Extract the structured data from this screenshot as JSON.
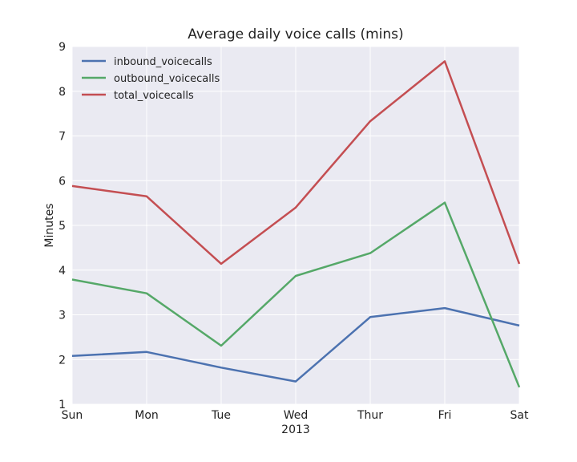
{
  "chart_data": {
    "type": "line",
    "title": "Average daily voice calls (mins)",
    "xlabel": "2013",
    "ylabel": "Minutes",
    "categories": [
      "Sun",
      "Mon",
      "Tue",
      "Wed",
      "Thur",
      "Fri",
      "Sat"
    ],
    "ylim": [
      1,
      9
    ],
    "yticks": [
      1,
      2,
      3,
      4,
      5,
      6,
      7,
      8,
      9
    ],
    "grid": true,
    "legend_position": "top-left",
    "background_color": "#EAEAF2",
    "series": [
      {
        "name": "inbound_voicecalls",
        "color": "#4C72B0",
        "values": [
          2.08,
          2.17,
          1.82,
          1.51,
          2.95,
          3.15,
          2.76
        ]
      },
      {
        "name": "outbound_voicecalls",
        "color": "#55A868",
        "values": [
          3.79,
          3.48,
          2.31,
          3.87,
          4.38,
          5.51,
          1.38
        ]
      },
      {
        "name": "total_voicecalls",
        "color": "#C44E52",
        "values": [
          5.88,
          5.65,
          4.14,
          5.4,
          7.33,
          8.67,
          4.14
        ]
      }
    ]
  }
}
